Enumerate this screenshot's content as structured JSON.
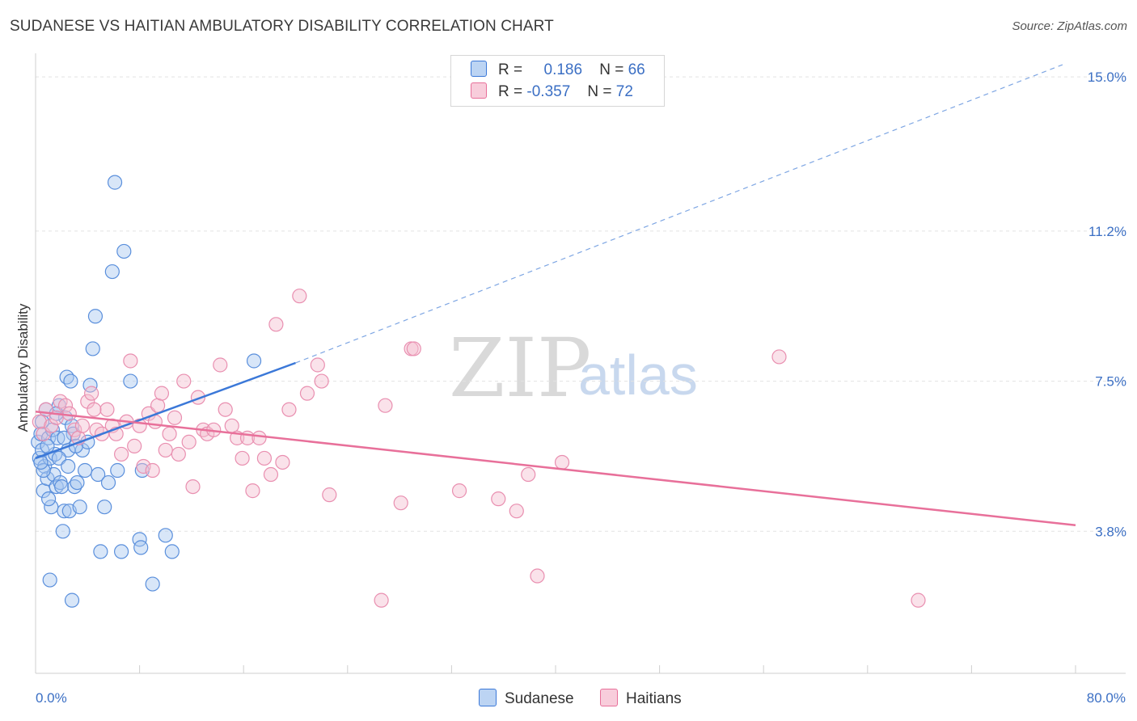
{
  "header": {
    "title": "SUDANESE VS HAITIAN AMBULATORY DISABILITY CORRELATION CHART",
    "source": "Source: ZipAtlas.com"
  },
  "legend": {
    "rows": [
      {
        "r_label": "R =",
        "r_value": "0.186",
        "n_label": "N =",
        "n_value": "66"
      },
      {
        "r_label": "R =",
        "r_value": "-0.357",
        "n_label": "N =",
        "n_value": "72"
      }
    ]
  },
  "bottom_legend": [
    "Sudanese",
    "Haitians"
  ],
  "watermark": {
    "zip": "ZIP",
    "atlas": "atlas"
  },
  "colors": {
    "sudanese": "#3b78d8",
    "sudanese_fill": "#a9c8f0",
    "haitians": "#e8709a",
    "haitians_fill": "#f5bfd1",
    "axis_label": "#3b6fc4"
  },
  "chart_data": {
    "type": "scatter",
    "title": "SUDANESE VS HAITIAN AMBULATORY DISABILITY CORRELATION CHART",
    "xlabel": "",
    "ylabel": "Ambulatory Disability",
    "xlim": [
      0,
      80
    ],
    "ylim": [
      0.3,
      15.5
    ],
    "x_tick_labels": [
      "0.0%",
      "80.0%"
    ],
    "y_ticks": [
      3.8,
      7.5,
      11.2,
      15.0
    ],
    "y_tick_labels": [
      "3.8%",
      "7.5%",
      "11.2%",
      "15.0%"
    ],
    "grid": "horizontal dashed",
    "legend_position": "top-center",
    "series": [
      {
        "name": "Sudanese",
        "r": 0.186,
        "n": 66,
        "trend": {
          "x": [
            0,
            20
          ],
          "y": [
            5.6,
            7.95
          ]
        },
        "trend_extended": {
          "x": [
            20,
            79
          ],
          "y": [
            7.95,
            15.3
          ]
        },
        "points": [
          [
            0.2,
            6.0
          ],
          [
            0.3,
            5.6
          ],
          [
            0.4,
            6.2
          ],
          [
            0.5,
            5.8
          ],
          [
            0.6,
            4.8
          ],
          [
            0.7,
            5.4
          ],
          [
            0.8,
            6.8
          ],
          [
            0.9,
            5.1
          ],
          [
            1.0,
            6.1
          ],
          [
            1.1,
            5.6
          ],
          [
            1.2,
            4.4
          ],
          [
            1.3,
            6.3
          ],
          [
            1.4,
            5.2
          ],
          [
            1.5,
            5.7
          ],
          [
            1.6,
            4.9
          ],
          [
            1.7,
            6.1
          ],
          [
            1.8,
            6.9
          ],
          [
            1.9,
            5.0
          ],
          [
            2.0,
            4.9
          ],
          [
            2.1,
            3.8
          ],
          [
            2.2,
            4.3
          ],
          [
            2.3,
            6.6
          ],
          [
            2.4,
            7.6
          ],
          [
            2.5,
            5.8
          ],
          [
            2.6,
            4.3
          ],
          [
            2.7,
            7.5
          ],
          [
            2.8,
            6.4
          ],
          [
            2.9,
            6.2
          ],
          [
            3.0,
            4.9
          ],
          [
            3.2,
            5.0
          ],
          [
            3.4,
            4.4
          ],
          [
            3.6,
            5.8
          ],
          [
            3.8,
            5.3
          ],
          [
            4.0,
            6.0
          ],
          [
            4.2,
            7.4
          ],
          [
            4.4,
            8.3
          ],
          [
            4.6,
            9.1
          ],
          [
            4.8,
            5.2
          ],
          [
            5.0,
            3.3
          ],
          [
            5.3,
            4.4
          ],
          [
            5.6,
            5.0
          ],
          [
            5.9,
            10.2
          ],
          [
            6.1,
            12.4
          ],
          [
            6.3,
            5.3
          ],
          [
            6.6,
            3.3
          ],
          [
            6.8,
            10.7
          ],
          [
            7.3,
            7.5
          ],
          [
            8.0,
            3.6
          ],
          [
            8.1,
            3.4
          ],
          [
            8.2,
            5.3
          ],
          [
            9.0,
            2.5
          ],
          [
            10.0,
            3.7
          ],
          [
            10.5,
            3.3
          ],
          [
            16.8,
            8.0
          ],
          [
            1.1,
            2.6
          ],
          [
            2.8,
            2.1
          ],
          [
            0.5,
            6.5
          ],
          [
            1.6,
            6.7
          ],
          [
            0.9,
            5.9
          ],
          [
            3.1,
            5.9
          ],
          [
            2.2,
            6.1
          ],
          [
            1.0,
            4.6
          ],
          [
            0.6,
            5.3
          ],
          [
            1.8,
            5.6
          ],
          [
            0.4,
            5.5
          ],
          [
            2.5,
            5.4
          ]
        ]
      },
      {
        "name": "Haitians",
        "r": -0.357,
        "n": 72,
        "trend": {
          "x": [
            0,
            80
          ],
          "y": [
            6.75,
            3.95
          ]
        },
        "points": [
          [
            0.3,
            6.5
          ],
          [
            0.6,
            6.2
          ],
          [
            0.8,
            6.8
          ],
          [
            1.2,
            6.4
          ],
          [
            1.6,
            6.6
          ],
          [
            1.9,
            7.0
          ],
          [
            2.3,
            6.9
          ],
          [
            2.6,
            6.7
          ],
          [
            3.0,
            6.3
          ],
          [
            3.3,
            6.1
          ],
          [
            3.6,
            6.4
          ],
          [
            4.0,
            7.0
          ],
          [
            4.3,
            7.2
          ],
          [
            4.7,
            6.3
          ],
          [
            5.1,
            6.2
          ],
          [
            5.5,
            6.8
          ],
          [
            5.9,
            6.4
          ],
          [
            6.2,
            6.2
          ],
          [
            6.6,
            5.7
          ],
          [
            7.0,
            6.5
          ],
          [
            7.3,
            8.0
          ],
          [
            7.6,
            5.9
          ],
          [
            8.0,
            6.4
          ],
          [
            8.3,
            5.4
          ],
          [
            8.7,
            6.7
          ],
          [
            9.0,
            5.3
          ],
          [
            9.4,
            6.9
          ],
          [
            9.7,
            7.2
          ],
          [
            10.0,
            5.8
          ],
          [
            10.3,
            6.2
          ],
          [
            10.7,
            6.6
          ],
          [
            11.0,
            5.7
          ],
          [
            11.4,
            7.5
          ],
          [
            11.8,
            6.0
          ],
          [
            12.1,
            4.9
          ],
          [
            12.5,
            7.1
          ],
          [
            12.9,
            6.3
          ],
          [
            13.2,
            6.2
          ],
          [
            13.7,
            6.3
          ],
          [
            14.2,
            7.9
          ],
          [
            14.6,
            6.8
          ],
          [
            15.1,
            6.4
          ],
          [
            15.5,
            6.1
          ],
          [
            15.9,
            5.6
          ],
          [
            16.3,
            6.1
          ],
          [
            16.7,
            4.8
          ],
          [
            17.2,
            6.1
          ],
          [
            17.6,
            5.6
          ],
          [
            18.1,
            5.2
          ],
          [
            18.5,
            8.9
          ],
          [
            19.0,
            5.5
          ],
          [
            19.5,
            6.8
          ],
          [
            20.3,
            9.6
          ],
          [
            20.9,
            7.2
          ],
          [
            21.7,
            7.9
          ],
          [
            22.0,
            7.5
          ],
          [
            22.6,
            4.7
          ],
          [
            26.6,
            2.1
          ],
          [
            26.9,
            6.9
          ],
          [
            28.1,
            4.5
          ],
          [
            28.9,
            8.3
          ],
          [
            29.1,
            8.3
          ],
          [
            32.6,
            4.8
          ],
          [
            35.6,
            4.6
          ],
          [
            37.0,
            4.3
          ],
          [
            37.9,
            5.2
          ],
          [
            38.6,
            2.7
          ],
          [
            40.5,
            5.5
          ],
          [
            57.2,
            8.1
          ],
          [
            67.9,
            2.1
          ],
          [
            4.5,
            6.8
          ],
          [
            9.2,
            6.5
          ]
        ]
      }
    ]
  }
}
